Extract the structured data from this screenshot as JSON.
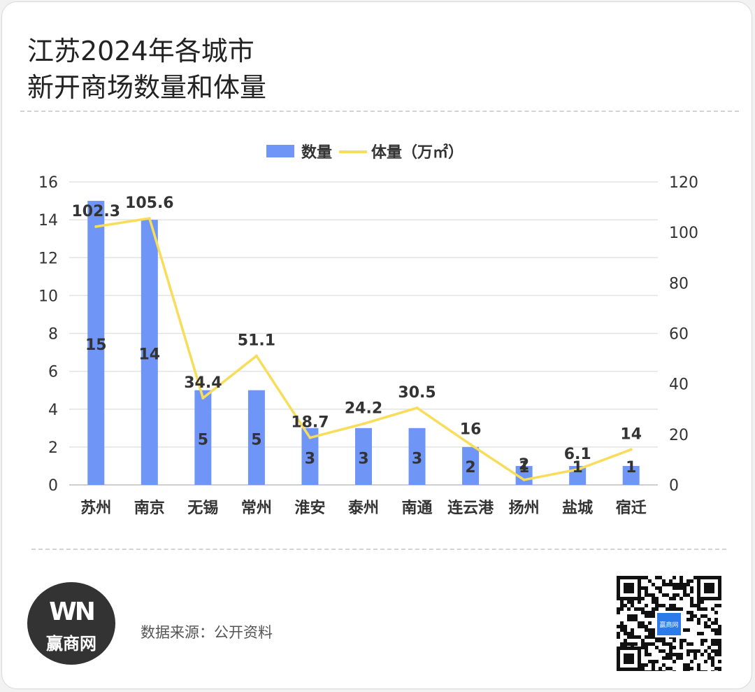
{
  "title_line1": "江苏2024年各城市",
  "title_line2": "新开商场数量和体量",
  "logo": {
    "mark": "WN",
    "name": "赢商网"
  },
  "source": "数据来源：公开资料",
  "qr_label": "赢商网",
  "colors": {
    "bar": "#6f96f7",
    "line": "#f7dd59",
    "grid": "#e3e3e3",
    "text": "#333333"
  },
  "chart_data": {
    "type": "bar",
    "categories": [
      "苏州",
      "南京",
      "无锡",
      "常州",
      "淮安",
      "泰州",
      "南通",
      "连云港",
      "扬州",
      "盐城",
      "宿迁"
    ],
    "series": [
      {
        "name": "数量",
        "type": "bar",
        "axis": "left",
        "values": [
          15,
          14,
          5,
          5,
          3,
          3,
          3,
          2,
          1,
          1,
          1
        ]
      },
      {
        "name": "体量（万㎡）",
        "type": "line",
        "axis": "right",
        "values": [
          102.3,
          105.6,
          34.4,
          51.1,
          18.7,
          24.2,
          30.5,
          16,
          2,
          6.1,
          14
        ]
      }
    ],
    "y_left": {
      "min": 0,
      "max": 16,
      "ticks": [
        0,
        2,
        4,
        6,
        8,
        10,
        12,
        14,
        16
      ]
    },
    "y_right": {
      "min": 0,
      "max": 120,
      "ticks": [
        0,
        20,
        40,
        60,
        80,
        100,
        120
      ]
    },
    "legend_position": "top-center",
    "grid": true
  }
}
